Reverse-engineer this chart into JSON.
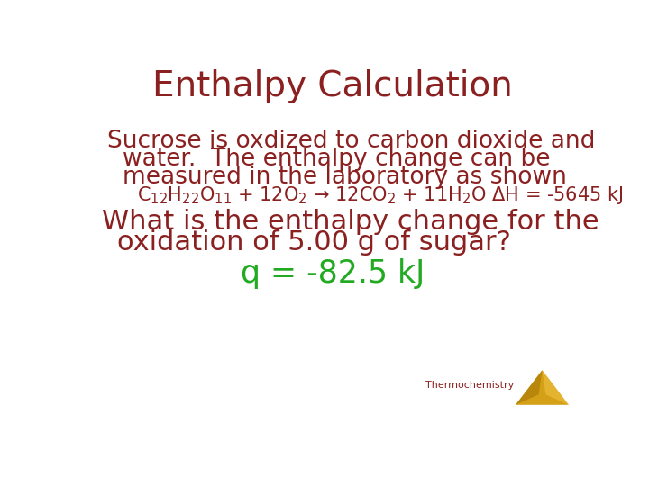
{
  "title": "Enthalpy Calculation",
  "title_color": "#8B2020",
  "title_fontsize": 28,
  "background_color": "#FFFFFF",
  "text_color": "#8B2020",
  "green_color": "#22AA22",
  "line1": "Sucrose is oxdized to carbon dioxide and",
  "line2": "water.  The enthalpy change can be",
  "line3": "measured in the laboratory as shown",
  "equation_answer": "q = -82.5 kJ",
  "question_line1": "What is the enthalpy change for the",
  "question_line2": "oxidation of 5.00 g of sugar?",
  "thermo_label": "Thermochemistry",
  "triangle_color": "#D4A017",
  "text_fontsize": 19,
  "eq_fontsize": 15,
  "question_fontsize": 22,
  "answer_fontsize": 25
}
